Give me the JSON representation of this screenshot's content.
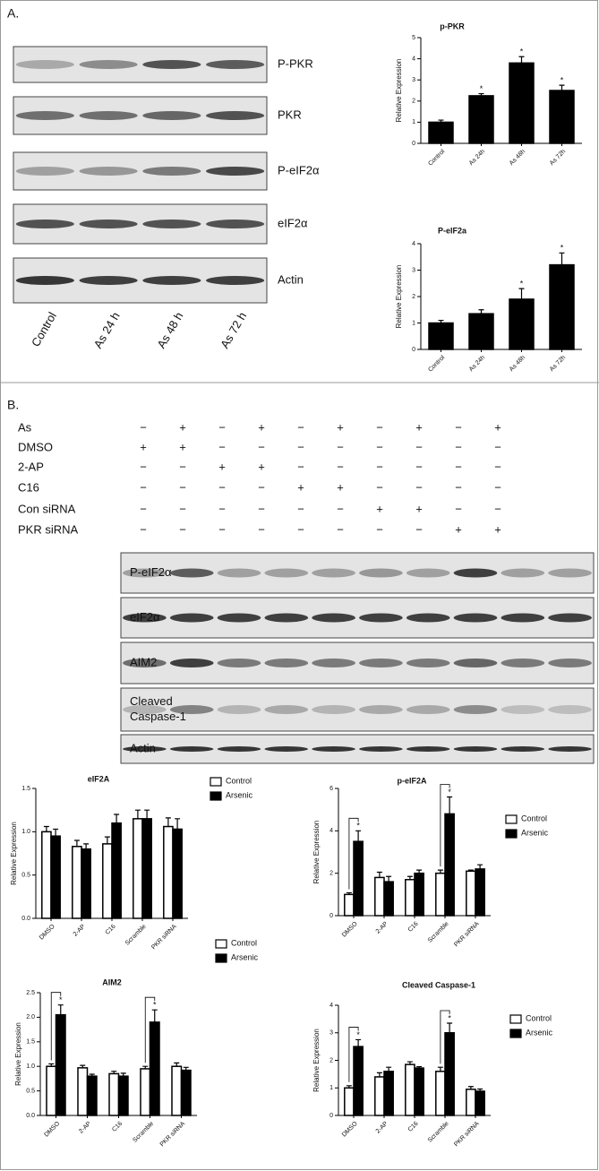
{
  "panel_a": {
    "label": "A.",
    "blots": [
      "P-PKR",
      "PKR",
      "P-eIF2α",
      "eIF2α",
      "Actin"
    ],
    "lanes": [
      "Control",
      "As 24 h",
      "As 48 h",
      "As 72 h"
    ]
  },
  "panel_b": {
    "label": "B.",
    "treatments": [
      {
        "label": "As",
        "signs": [
          "−",
          "+",
          "−",
          "+",
          "−",
          "+",
          "−",
          "+",
          "−",
          "+"
        ]
      },
      {
        "label": "DMSO",
        "signs": [
          "+",
          "+",
          "−",
          "−",
          "−",
          "−",
          "−",
          "−",
          "−",
          "−"
        ]
      },
      {
        "label": "2-AP",
        "signs": [
          "−",
          "−",
          "+",
          "+",
          "−",
          "−",
          "−",
          "−",
          "−",
          "−"
        ]
      },
      {
        "label": "C16",
        "signs": [
          "−",
          "−",
          "−",
          "−",
          "+",
          "+",
          "−",
          "−",
          "−",
          "−"
        ]
      },
      {
        "label": "Con siRNA",
        "signs": [
          "−",
          "−",
          "−",
          "−",
          "−",
          "−",
          "+",
          "+",
          "−",
          "−"
        ]
      },
      {
        "label": "PKR siRNA",
        "signs": [
          "−",
          "−",
          "−",
          "−",
          "−",
          "−",
          "−",
          "−",
          "+",
          "+"
        ]
      }
    ],
    "blots": [
      [
        "P-eIF2α"
      ],
      [
        "eIF2α"
      ],
      [
        "AIM2"
      ],
      [
        "Cleaved",
        "Caspase-1"
      ],
      [
        "Actin"
      ]
    ]
  },
  "chart_data": [
    {
      "type": "bar",
      "title": "p-PKR",
      "y_label": "Relative Expression",
      "categories": [
        "Control",
        "As 24h",
        "As 48h",
        "As 72h"
      ],
      "values": [
        1,
        2.25,
        3.8,
        2.5
      ],
      "errors": [
        0.1,
        0.1,
        0.3,
        0.25
      ],
      "significance": [
        null,
        "*",
        "*",
        "*"
      ],
      "color": "#000000",
      "ylim": [
        0,
        5
      ],
      "yticks": [
        0,
        1,
        2,
        3,
        4,
        5
      ]
    },
    {
      "type": "bar",
      "title": "P-eIF2a",
      "y_label": "Relative Expression",
      "categories": [
        "Control",
        "As 24h",
        "As 48h",
        "As 72h"
      ],
      "values": [
        1,
        1.35,
        1.9,
        3.2
      ],
      "errors": [
        0.1,
        0.15,
        0.4,
        0.45
      ],
      "significance": [
        null,
        null,
        "*",
        "*"
      ],
      "color": "#000000",
      "ylim": [
        0,
        4
      ],
      "yticks": [
        0,
        1,
        2,
        3,
        4
      ]
    },
    {
      "type": "bar",
      "title": "eIF2A",
      "y_label": "Relative Expression",
      "categories": [
        "DMSO",
        "2-AP",
        "C16",
        "Scramble",
        "PKR siRNA"
      ],
      "series": [
        {
          "name": "Control",
          "color": "#ffffff",
          "values": [
            1,
            0.83,
            0.86,
            1.15,
            1.06
          ],
          "errors": [
            0.06,
            0.07,
            0.08,
            0.1,
            0.1
          ]
        },
        {
          "name": "Arsenic",
          "color": "#000000",
          "values": [
            0.95,
            0.8,
            1.1,
            1.15,
            1.03
          ],
          "errors": [
            0.08,
            0.06,
            0.1,
            0.1,
            0.12
          ]
        }
      ],
      "ylim": [
        0,
        1.5
      ],
      "yticks": [
        {
          "value": 0,
          "label": "0.0"
        },
        0.5,
        {
          "value": 1,
          "label": "1.0"
        },
        1.5
      ]
    },
    {
      "type": "bar",
      "title": "p-eIF2A",
      "y_label": "Relative Expression",
      "categories": [
        "DMSO",
        "2-AP",
        "C16",
        "Scramble",
        "PKR siRNA"
      ],
      "series": [
        {
          "name": "Control",
          "color": "#ffffff",
          "values": [
            1,
            1.8,
            1.7,
            2,
            2.1
          ],
          "errors": [
            0.08,
            0.25,
            0.15,
            0.15,
            0.05
          ]
        },
        {
          "name": "Arsenic",
          "color": "#000000",
          "values": [
            3.5,
            1.6,
            2,
            4.8,
            2.2
          ],
          "errors": [
            0.5,
            0.25,
            0.15,
            0.8,
            0.2
          ],
          "significance": [
            "*",
            null,
            null,
            "*",
            null
          ]
        }
      ],
      "ylim": [
        0,
        6
      ],
      "yticks": [
        0,
        2,
        4,
        6
      ]
    },
    {
      "type": "bar",
      "title": "AIM2",
      "y_label": "Relative Expression",
      "categories": [
        "DMSO",
        "2-AP",
        "C16",
        "Scramble",
        "PKR siRNA"
      ],
      "series": [
        {
          "name": "Control",
          "color": "#ffffff",
          "values": [
            1,
            0.97,
            0.85,
            0.95,
            1
          ],
          "errors": [
            0.05,
            0.05,
            0.05,
            0.05,
            0.07
          ]
        },
        {
          "name": "Arsenic",
          "color": "#000000",
          "values": [
            2.05,
            0.8,
            0.8,
            1.9,
            0.92
          ],
          "errors": [
            0.2,
            0.04,
            0.06,
            0.25,
            0.06
          ],
          "significance": [
            "*",
            null,
            null,
            "*",
            null
          ]
        }
      ],
      "ylim": [
        0,
        2.5
      ],
      "yticks": [
        {
          "value": 0,
          "label": "0.0"
        },
        0.5,
        {
          "value": 1,
          "label": "1.0"
        },
        1.5,
        {
          "value": 2,
          "label": "2.0"
        },
        2.5
      ]
    },
    {
      "type": "bar",
      "title": "Cleaved Caspase-1",
      "y_label": "Relative Expression",
      "categories": [
        "DMSO",
        "2-AP",
        "C16",
        "Scramble",
        "PKR siRNA"
      ],
      "series": [
        {
          "name": "Control",
          "color": "#ffffff",
          "values": [
            1,
            1.4,
            1.85,
            1.6,
            0.95
          ],
          "errors": [
            0.08,
            0.15,
            0.1,
            0.15,
            0.1
          ]
        },
        {
          "name": "Arsenic",
          "color": "#000000",
          "values": [
            2.5,
            1.6,
            1.72,
            3,
            0.88
          ],
          "errors": [
            0.25,
            0.15,
            0.05,
            0.35,
            0.08
          ],
          "significance": [
            "*",
            null,
            null,
            "*",
            null
          ]
        }
      ],
      "ylim": [
        0,
        4
      ],
      "yticks": [
        0,
        1,
        2,
        3,
        4
      ]
    }
  ]
}
